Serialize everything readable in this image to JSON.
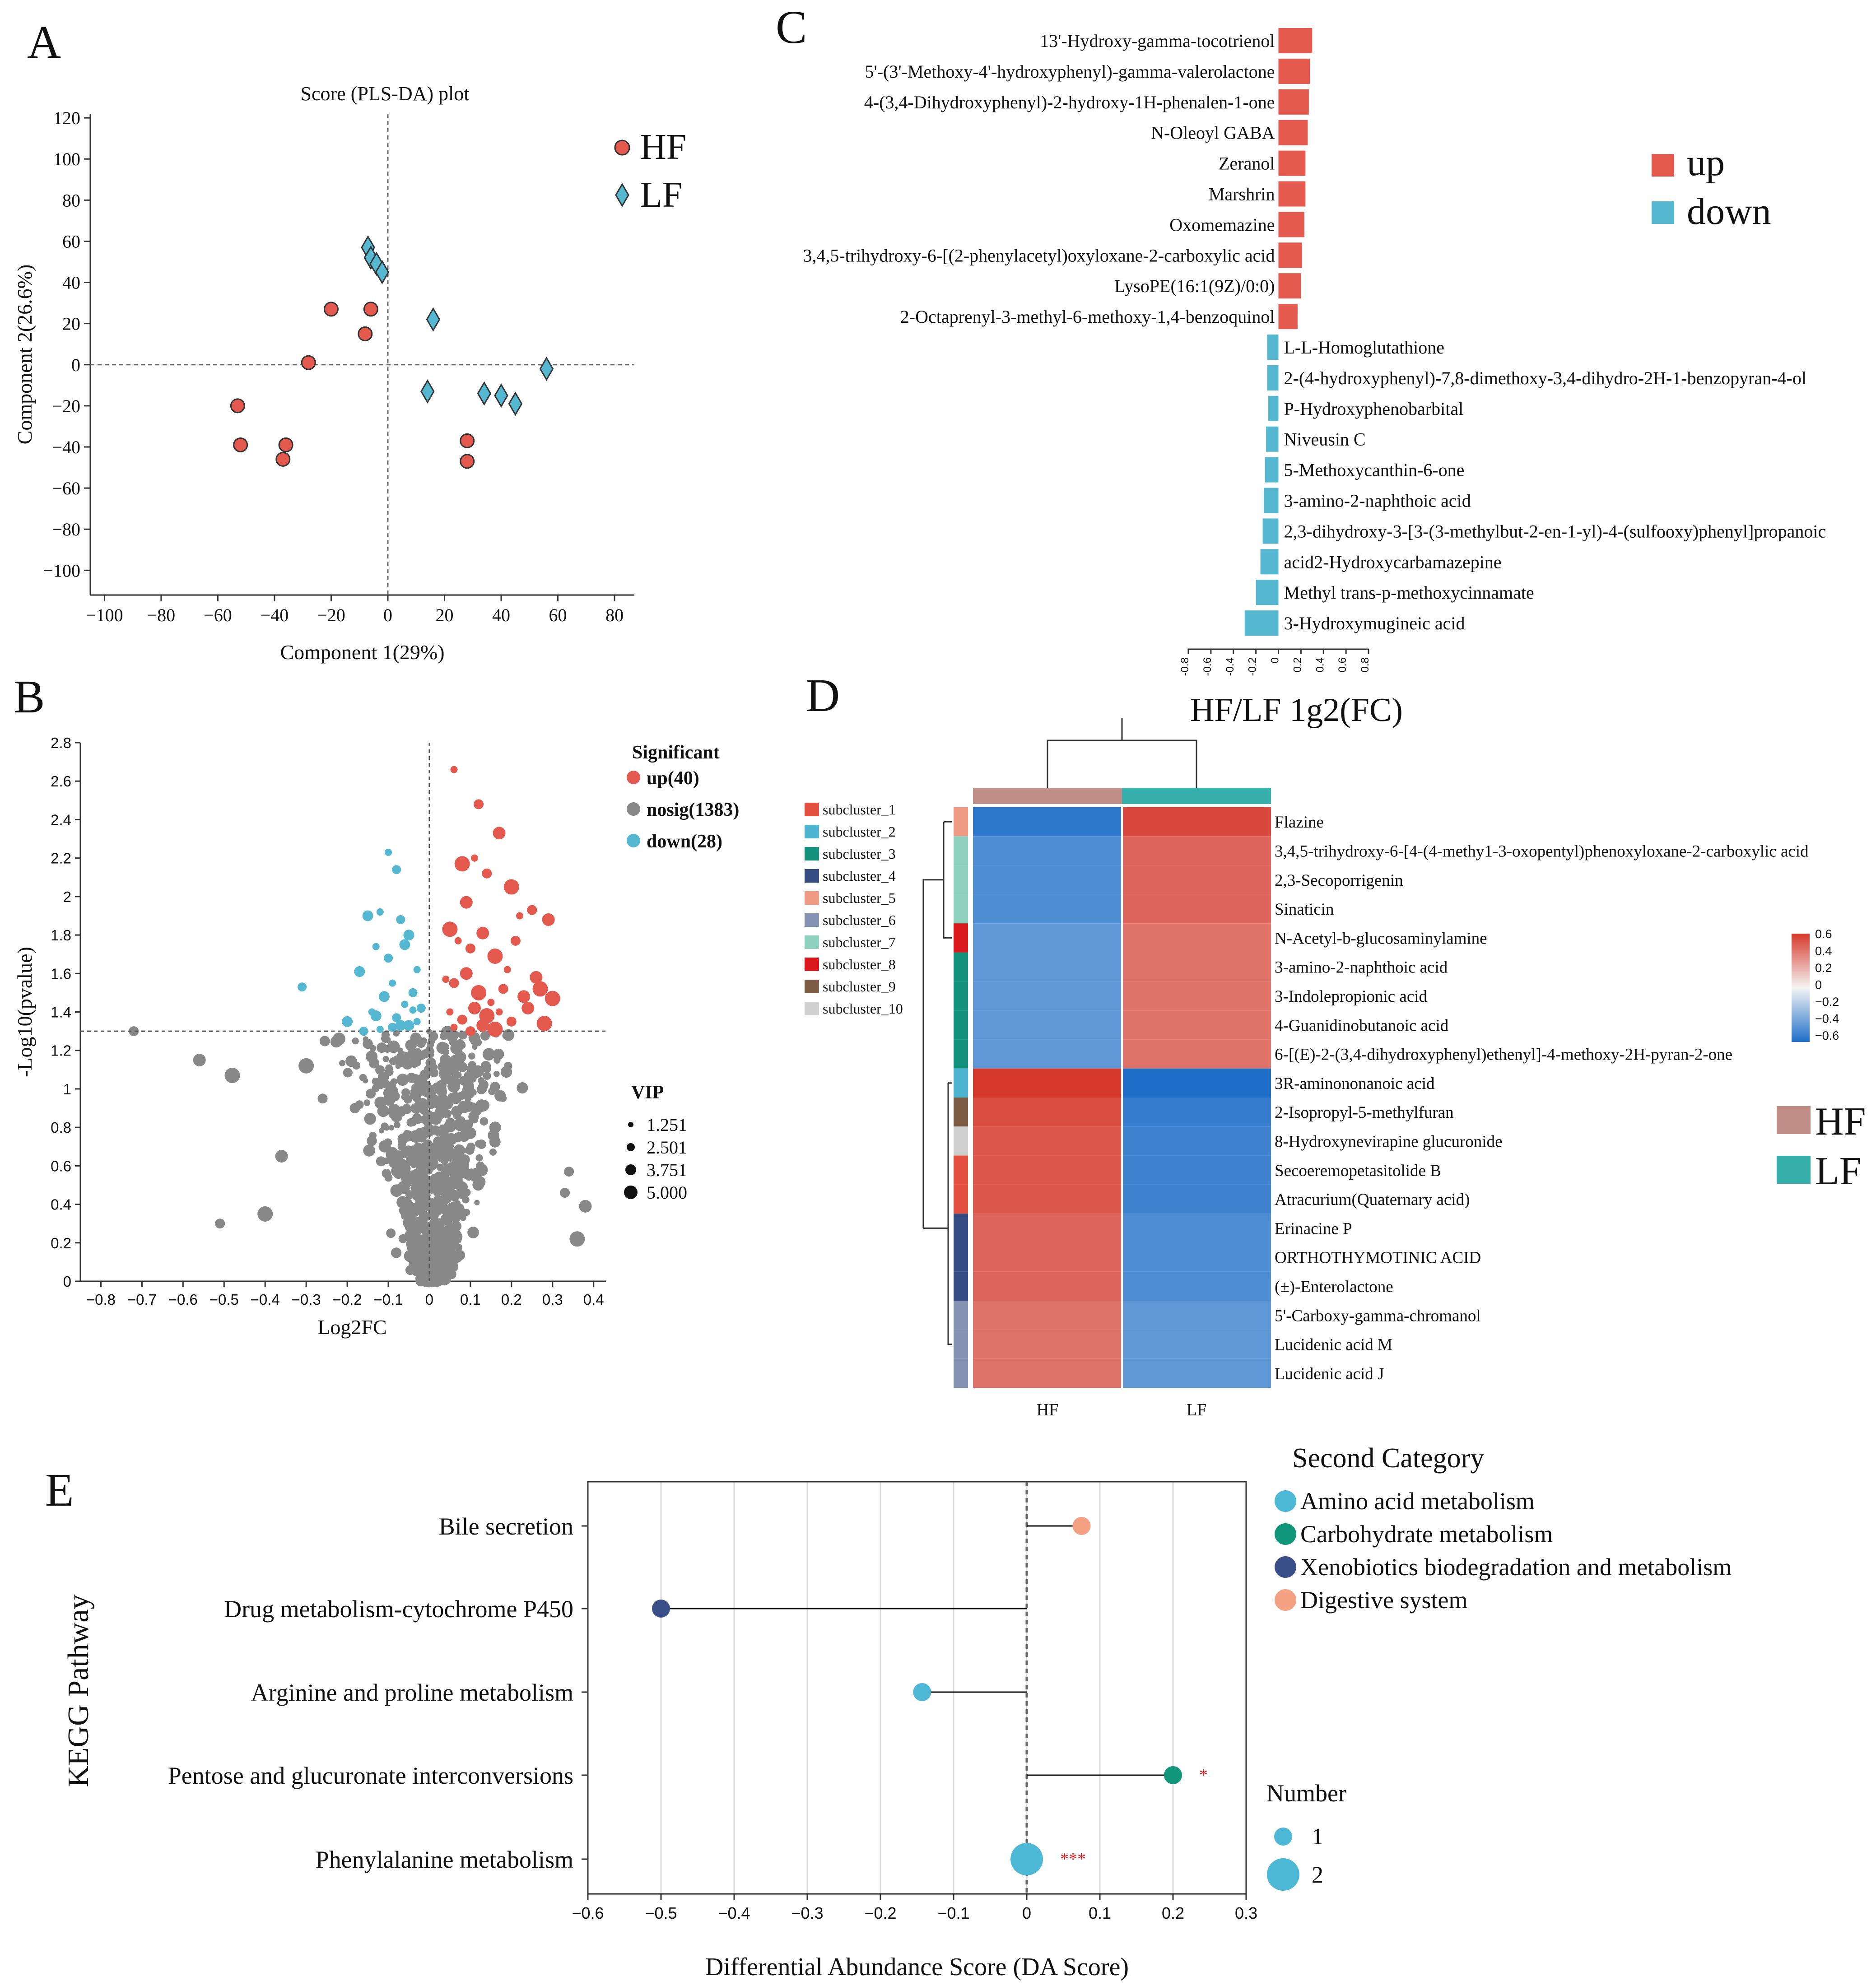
{
  "panel_labels": [
    "A",
    "B",
    "C",
    "D",
    "E"
  ],
  "colors": {
    "red": "#e4594d",
    "blue": "#55b8d0",
    "grey": "#888888",
    "hf_sample": "#c08d86",
    "lf_sample": "#36aea9",
    "lollipop_amino": "#4db8d6",
    "lollipop_carb": "#12967a",
    "lollipop_xeno": "#3a4f88",
    "lollipop_dig": "#f3a083"
  },
  "chart_data": [
    {
      "id": "A",
      "type": "scatter",
      "title": "Score (PLS-DA) plot",
      "xlabel": "Component 1(29%)",
      "ylabel": "Component 2(26.6%)",
      "xlim": [
        -105,
        87
      ],
      "ylim": [
        -112,
        122
      ],
      "xticks": [
        -100,
        -80,
        -60,
        -40,
        -20,
        0,
        20,
        40,
        60,
        80
      ],
      "yticks": [
        120,
        100,
        80,
        60,
        40,
        20,
        0,
        -20,
        -40,
        -60,
        -80,
        -100
      ],
      "xtick_labels": [
        "−100",
        "−80",
        "−60",
        "−40",
        "−20",
        "0",
        "20",
        "40",
        "60",
        "80"
      ],
      "ytick_labels": [
        "120",
        "100",
        "80",
        "60",
        "40",
        "20",
        "0",
        "−20",
        "−40",
        "−60",
        "−80",
        "−100"
      ],
      "legend": [
        "HF",
        "LF"
      ],
      "series": [
        {
          "name": "HF",
          "marker": "circle",
          "x": [
            -20,
            -6,
            -8,
            -28,
            -53,
            -52,
            -36,
            -37,
            28,
            28
          ],
          "y": [
            27,
            27,
            15,
            1,
            -20,
            -39,
            -39,
            -46,
            -37,
            -47
          ]
        },
        {
          "name": "LF",
          "marker": "diamond",
          "x": [
            -7,
            -6,
            -4,
            -2,
            16,
            14,
            34,
            40,
            45,
            56
          ],
          "y": [
            57,
            52,
            49,
            45,
            22,
            -13,
            -14,
            -15,
            -19,
            -2
          ]
        }
      ]
    },
    {
      "id": "B",
      "type": "scatter",
      "subtype": "volcano",
      "xlabel": "Log2FC",
      "ylabel": "-Log10(pvalue)",
      "xlim": [
        -0.85,
        0.43
      ],
      "ylim": [
        0,
        2.8
      ],
      "threshold_y": 1.3,
      "xticks": [
        -0.8,
        -0.7,
        -0.6,
        -0.5,
        -0.4,
        -0.3,
        -0.2,
        -0.1,
        0,
        0.1,
        0.2,
        0.3,
        0.4
      ],
      "yticks": [
        0,
        0.2,
        0.4,
        0.6,
        0.8,
        1,
        1.2,
        1.4,
        1.6,
        1.8,
        2,
        2.2,
        2.4,
        2.6,
        2.8
      ],
      "xtick_labels": [
        "−0.8",
        "−0.7",
        "−0.6",
        "−0.5",
        "−0.4",
        "−0.3",
        "−0.2",
        "−0.1",
        "0",
        "0.1",
        "0.2",
        "0.3",
        "0.4"
      ],
      "ytick_labels": [
        "0",
        "0.2",
        "0.4",
        "0.6",
        "0.8",
        "1",
        "1.2",
        "1.4",
        "1.6",
        "1.8",
        "2",
        "2.2",
        "2.4",
        "2.6",
        "2.8"
      ],
      "legend_title": "Significant",
      "legend": [
        "up(40)",
        "nosig(1383)",
        "down(28)"
      ],
      "size_legend_title": "VIP",
      "size_legend": [
        "1.251",
        "2.501",
        "3.751",
        "5.000"
      ],
      "series": [
        {
          "name": "up",
          "count": 40,
          "x": [
            0.06,
            0.12,
            0.17,
            0.08,
            0.11,
            0.14,
            0.09,
            0.2,
            0.22,
            0.25,
            0.29,
            0.05,
            0.07,
            0.1,
            0.13,
            0.16,
            0.19,
            0.21,
            0.26,
            0.3,
            0.04,
            0.06,
            0.09,
            0.12,
            0.15,
            0.18,
            0.23,
            0.27,
            0.05,
            0.08,
            0.11,
            0.14,
            0.17,
            0.2,
            0.24,
            0.28,
            0.06,
            0.1,
            0.13,
            0.16
          ],
          "y": [
            2.66,
            2.48,
            2.33,
            2.17,
            2.2,
            2.12,
            1.97,
            2.05,
            1.9,
            1.93,
            1.88,
            1.83,
            1.77,
            1.73,
            1.81,
            1.69,
            1.62,
            1.77,
            1.58,
            1.47,
            1.57,
            1.55,
            1.6,
            1.5,
            1.45,
            1.52,
            1.48,
            1.52,
            1.4,
            1.36,
            1.42,
            1.38,
            1.4,
            1.35,
            1.42,
            1.34,
            1.32,
            1.3,
            1.33,
            1.31
          ]
        },
        {
          "name": "down",
          "count": 28,
          "x": [
            -0.1,
            -0.08,
            -0.15,
            -0.12,
            -0.07,
            -0.05,
            -0.13,
            -0.1,
            -0.06,
            -0.03,
            -0.31,
            -0.17,
            -0.09,
            -0.04,
            -0.11,
            -0.06,
            -0.02,
            -0.2,
            -0.14,
            -0.08,
            -0.05,
            -0.12,
            -0.16,
            -0.07,
            -0.03,
            -0.09,
            -0.13,
            -0.04
          ],
          "y": [
            2.23,
            2.14,
            1.9,
            1.92,
            1.88,
            1.8,
            1.74,
            1.68,
            1.75,
            1.62,
            1.53,
            1.61,
            1.55,
            1.5,
            1.48,
            1.44,
            1.42,
            1.35,
            1.4,
            1.37,
            1.33,
            1.31,
            1.3,
            1.33,
            1.35,
            1.32,
            1.38,
            1.41
          ]
        },
        {
          "name": "nosig",
          "count": 1383,
          "note": "dense grey cloud centered near Log2FC 0, pvalue below threshold; outliers listed",
          "outliers_x": [
            -0.72,
            -0.56,
            -0.48,
            -0.51,
            -0.36,
            -0.3,
            -0.26,
            -0.22,
            -0.4,
            0.34,
            0.38,
            0.36,
            0.33
          ],
          "outliers_y": [
            1.3,
            1.15,
            1.07,
            0.3,
            0.65,
            1.12,
            0.95,
            1.26,
            0.35,
            0.57,
            0.39,
            0.22,
            0.46
          ]
        }
      ]
    },
    {
      "id": "C",
      "type": "bar",
      "orientation": "horizontal",
      "xlabel": "HF/LF 1g2(FC)",
      "xlim": [
        -0.8,
        0.8
      ],
      "xticks": [
        -0.8,
        -0.6,
        -0.4,
        -0.2,
        0,
        0.2,
        0.4,
        0.6,
        0.8
      ],
      "xtick_labels": [
        "-0.8",
        "-0.6",
        "-0.4",
        "-0.2",
        "0",
        "0.2",
        "0.4",
        "0.6",
        "0.8"
      ],
      "legend": [
        "up",
        "down"
      ],
      "categories": [
        "13'-Hydroxy-gamma-tocotrienol",
        "5'-(3'-Methoxy-4'-hydroxyphenyl)-gamma-valerolactone",
        "4-(3,4-Dihydroxyphenyl)-2-hydroxy-1H-phenalen-1-one",
        "N-Oleoyl GABA",
        "Zeranol",
        "Marshrin",
        "Oxomemazine",
        "3,4,5-trihydroxy-6-[(2-phenylacetyl)oxyloxane-2-carboxylic acid",
        "LysoPE(16:1(9Z)/0:0)",
        "2-Octaprenyl-3-methyl-6-methoxy-1,4-benzoquinol",
        "L-L-Homoglutathione",
        "2-(4-hydroxyphenyl)-7,8-dimethoxy-3,4-dihydro-2H-1-benzopyran-4-ol",
        "P-Hydroxyphenobarbital",
        "Niveusin C",
        "5-Methoxycanthin-6-one",
        "3-amino-2-naphthoic acid",
        "2,3-dihydroxy-3-[3-(3-methylbut-2-en-1-yl)-4-(sulfooxy)phenyl]propanoic",
        "acid2-Hydroxycarbamazepine",
        "Methyl trans-p-methoxycinnamate",
        "3-Hydroxymugineic acid"
      ],
      "values": [
        0.3,
        0.28,
        0.27,
        0.26,
        0.24,
        0.24,
        0.23,
        0.21,
        0.2,
        0.17,
        -0.1,
        -0.1,
        -0.09,
        -0.11,
        -0.12,
        -0.13,
        -0.14,
        -0.16,
        -0.2,
        -0.3
      ]
    },
    {
      "id": "D",
      "type": "heatmap",
      "columns": [
        "HF",
        "LF"
      ],
      "rows": [
        "Flazine",
        "3,4,5-trihydroxy-6-[4-(4-methy1-3-oxopentyl)phenoxyloxane-2-carboxylic acid",
        "2,3-Secoporrigenin",
        "Sinaticin",
        "N-Acetyl-b-glucosaminylamine",
        "3-amino-2-naphthoic acid",
        "3-Indolepropionic acid",
        "4-Guanidinobutanoic acid",
        "6-[(E)-2-(3,4-dihydroxyphenyl)ethenyl]-4-methoxy-2H-pyran-2-one",
        "3R-aminononanoic acid",
        "2-Isopropyl-5-methylfuran",
        "8-Hydroxynevirapine glucuronide",
        "Secoeremopetasitolide B",
        "Atracurium(Quaternary acid)",
        "Erinacine P",
        "ORTHOTHYMOTINIC ACID",
        "(±)-Enterolactone",
        "5'-Carboxy-gamma-chromanol",
        "Lucidenic acid M",
        "Lucidenic acid  J"
      ],
      "values": [
        [
          -0.6,
          0.6
        ],
        [
          -0.5,
          0.5
        ],
        [
          -0.5,
          0.5
        ],
        [
          -0.5,
          0.5
        ],
        [
          -0.45,
          0.45
        ],
        [
          -0.45,
          0.45
        ],
        [
          -0.45,
          0.45
        ],
        [
          -0.45,
          0.45
        ],
        [
          -0.45,
          0.45
        ],
        [
          0.65,
          -0.65
        ],
        [
          0.58,
          -0.58
        ],
        [
          0.55,
          -0.55
        ],
        [
          0.55,
          -0.55
        ],
        [
          0.55,
          -0.55
        ],
        [
          0.5,
          -0.5
        ],
        [
          0.5,
          -0.5
        ],
        [
          0.5,
          -0.5
        ],
        [
          0.45,
          -0.45
        ],
        [
          0.45,
          -0.45
        ],
        [
          0.45,
          -0.45
        ]
      ],
      "color_range": [
        -0.6,
        0.6
      ],
      "colorbar_ticks": [
        "0.6",
        "0.4",
        "0.2",
        "0",
        "−0.2",
        "−0.4",
        "−0.6"
      ],
      "subcluster_legend": [
        "subcluster_1",
        "subcluster_2",
        "subcluster_3",
        "subcluster_4",
        "subcluster_5",
        "subcluster_6",
        "subcluster_7",
        "subcluster_8",
        "subcluster_9",
        "subcluster_10"
      ],
      "subcluster_colors": [
        "#e4503f",
        "#4db5cf",
        "#13917a",
        "#354d83",
        "#ef9a82",
        "#8592b4",
        "#8dd0bd",
        "#d9181e",
        "#7b5b43",
        "#cfcfcf"
      ],
      "row_subclusters": [
        5,
        7,
        7,
        7,
        8,
        3,
        3,
        3,
        3,
        2,
        9,
        10,
        1,
        1,
        4,
        4,
        4,
        6,
        6,
        6
      ],
      "legend": [
        "HF",
        "LF"
      ]
    },
    {
      "id": "E",
      "type": "lollipop",
      "xlabel": "Differential Abundance Score (DA Score)",
      "ylabel": "KEGG Pathway",
      "xlim": [
        -0.6,
        0.3
      ],
      "xticks": [
        -0.6,
        -0.5,
        -0.4,
        -0.3,
        -0.2,
        -0.1,
        0,
        0.1,
        0.2,
        0.3
      ],
      "xtick_labels": [
        "−0.6",
        "−0.5",
        "−0.4",
        "−0.3",
        "−0.2",
        "−0.1",
        "0",
        "0.1",
        "0.2",
        "0.3"
      ],
      "categories": [
        "Bile secretion",
        "Drug metabolism-cytochrome P450",
        "Arginine and proline metabolism",
        "Pentose and glucuronate interconversions",
        "Phenylalanine metabolism"
      ],
      "values": [
        0.075,
        -0.5,
        -0.143,
        0.2,
        0
      ],
      "numbers": [
        1,
        1,
        1,
        1,
        2
      ],
      "category_group": [
        "Digestive system",
        "Xenobiotics biodegradation and metabolism",
        "Amino acid metabolism",
        "Carbohydrate metabolism",
        "Amino acid metabolism"
      ],
      "significance": [
        "",
        "",
        "",
        "*",
        "***"
      ],
      "legend_title": "Second Category",
      "legend": [
        "Amino acid metabolism",
        "Carbohydrate metabolism",
        "Xenobiotics biodegradation and metabolism",
        "Digestive system"
      ],
      "size_legend_title": "Number",
      "size_legend": [
        "1",
        "2"
      ]
    }
  ]
}
